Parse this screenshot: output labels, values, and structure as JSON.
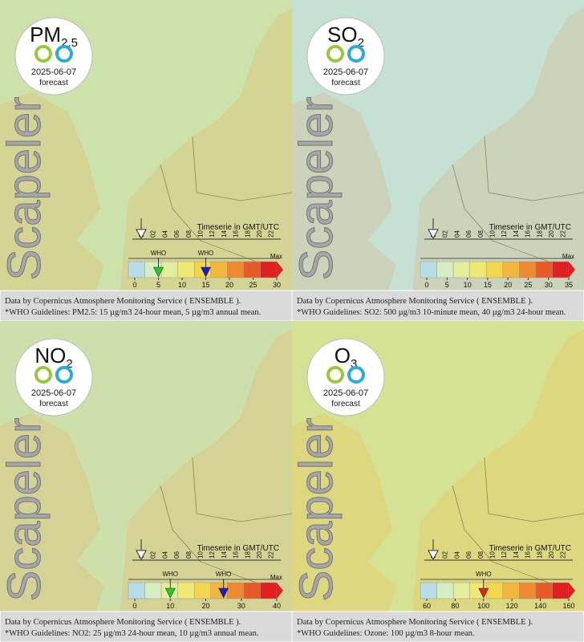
{
  "brand": "Scapeler",
  "date": "2025-06-07",
  "note": "forecast",
  "timeline": {
    "label": "Timeserie in GMT/UTC",
    "hours": [
      "00",
      "02",
      "04",
      "06",
      "08",
      "10",
      "12",
      "14",
      "16",
      "18",
      "20",
      "22"
    ]
  },
  "source": "Data by Copernicus Atmosphere Monitoring Service ( ENSEMBLE ).",
  "palette": [
    "#b8dde6",
    "#d6edc4",
    "#e3ee9c",
    "#efe873",
    "#f3d64d",
    "#f2b63c",
    "#ee8a30",
    "#e65a28",
    "#de2020"
  ],
  "panels": [
    {
      "title": "PM",
      "sub": "2.5",
      "lim": [
        0,
        30
      ],
      "ticks": [
        0,
        5,
        10,
        15,
        20,
        25,
        30
      ],
      "max": "Max",
      "who": [
        {
          "value": 5,
          "label": "WHO",
          "color": "#22cc22"
        },
        {
          "value": 15,
          "label": "WHO",
          "color": "#1a1acc"
        }
      ],
      "guideline": "*WHO Guidelines: PM2.5: 15 µg/m3 24-hour mean, 5 µg/m3 annual mean."
    },
    {
      "title": "SO",
      "sub": "2",
      "lim": [
        0,
        35
      ],
      "ticks": [
        0,
        5,
        10,
        15,
        20,
        25,
        30,
        35
      ],
      "max": "Max",
      "who": [],
      "guideline": "*WHO Guidelines: SO2: 500 µg/m3 10-minute mean, 40 µg/m3 24-hour mean."
    },
    {
      "title": "NO",
      "sub": "2",
      "lim": [
        0,
        40
      ],
      "ticks": [
        0,
        10,
        20,
        30,
        40
      ],
      "max": "Max",
      "who": [
        {
          "value": 10,
          "label": "WHO",
          "color": "#22cc22"
        },
        {
          "value": 25,
          "label": "WHO",
          "color": "#1a1acc"
        }
      ],
      "guideline": "*WHO Guidelines: NO2: 25 µg/m3 24-hour mean, 10 µg/m3 annual mean."
    },
    {
      "title": "O",
      "sub": "3",
      "lim": [
        60,
        160
      ],
      "ticks": [
        60,
        80,
        100,
        120,
        140,
        160
      ],
      "max": "",
      "who": [
        {
          "value": 100,
          "label": "WHO",
          "color": "#dd2222"
        }
      ],
      "guideline": "*WHO Guidelines: Ozone: 100 µg/m3 8-hour mean."
    }
  ]
}
